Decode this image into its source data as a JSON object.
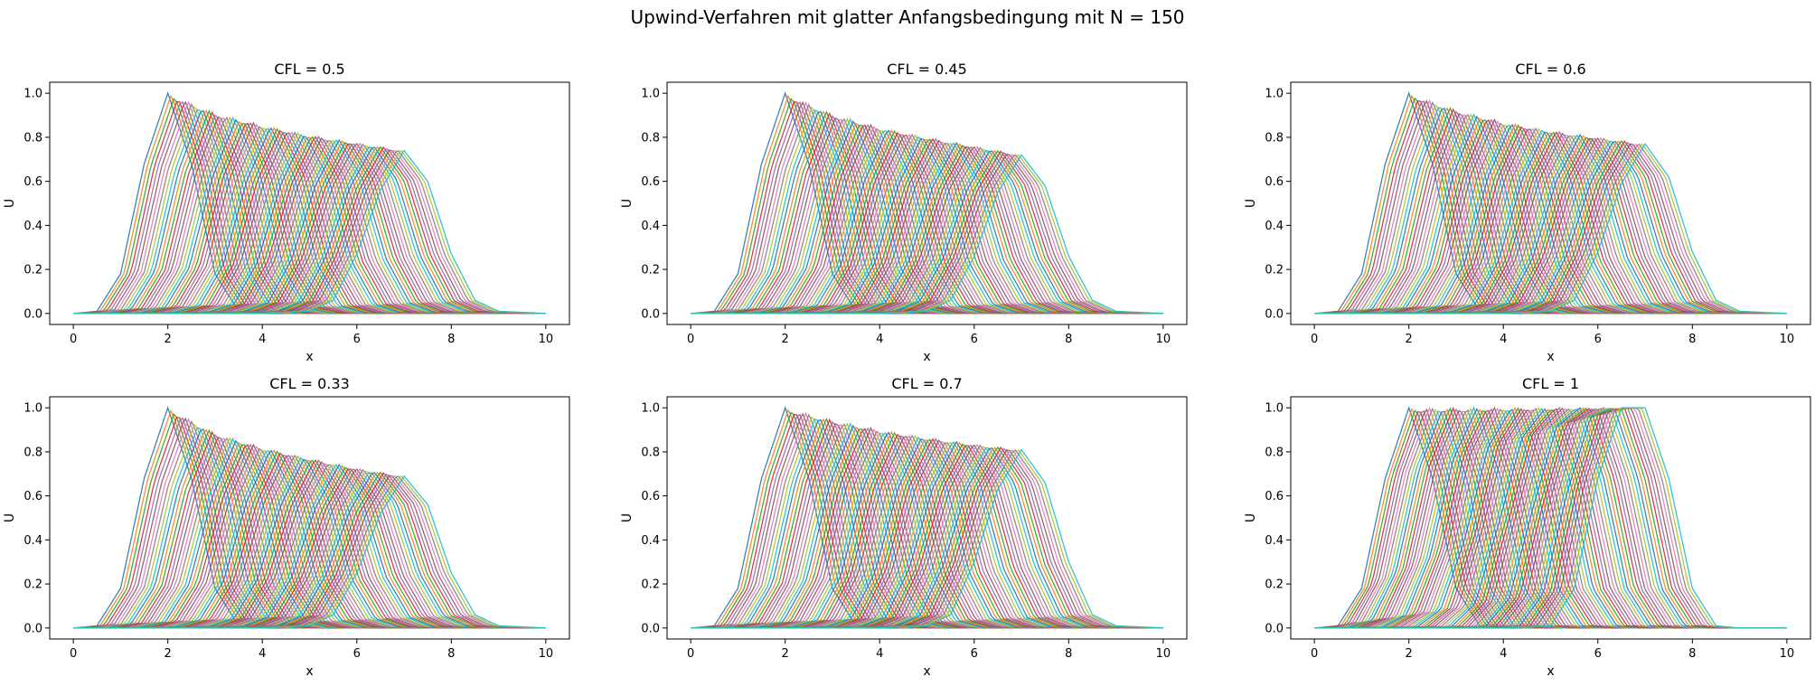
{
  "figure": {
    "suptitle": "Upwind-Verfahren mit glatter Anfangsbedingung mit N = 150"
  },
  "palette": [
    "#1f77b4",
    "#ff7f0e",
    "#2ca02c",
    "#d62728",
    "#9467bd",
    "#8c564b",
    "#e377c2",
    "#7f7f7f",
    "#bcbd22",
    "#17becf"
  ],
  "chart_data": [
    {
      "type": "line",
      "title": "CFL = 0.5",
      "xlabel": "x",
      "ylabel": "U",
      "xlim": [
        -0.5,
        10.5
      ],
      "ylim": [
        -0.05,
        1.05
      ],
      "xticks": [
        0,
        2,
        4,
        6,
        8,
        10
      ],
      "yticks": [
        0.0,
        0.2,
        0.4,
        0.6,
        0.8,
        1.0
      ],
      "yticklabels": [
        "0.0",
        "0.2",
        "0.4",
        "0.6",
        "0.8",
        "1.0"
      ],
      "grid": false,
      "legend": "none",
      "series": [
        {
          "x": [
            0,
            0.5,
            1.0,
            1.5,
            2.0,
            2.5,
            3.0,
            3.5,
            4.0,
            10.0
          ],
          "values": [
            0,
            0.01,
            0.18,
            0.68,
            1.0,
            0.68,
            0.18,
            0.01,
            0,
            0
          ]
        },
        {
          "x": [
            0,
            3.0,
            4.0,
            5.0,
            5.5,
            6.0,
            6.5,
            7.0,
            7.5,
            8.0,
            8.5,
            9.0,
            10.0
          ],
          "values": [
            0,
            0,
            0,
            0.01,
            0.06,
            0.27,
            0.56,
            0.74,
            0.6,
            0.27,
            0.06,
            0.01,
            0
          ]
        }
      ],
      "envelope": {
        "x": [
          2.0,
          3.0,
          4.0,
          5.0,
          6.0,
          7.0
        ],
        "values": [
          1.0,
          0.91,
          0.855,
          0.81,
          0.775,
          0.74
        ]
      }
    },
    {
      "type": "line",
      "title": "CFL = 0.45",
      "xlabel": "x",
      "ylabel": "U",
      "xlim": [
        -0.5,
        10.5
      ],
      "ylim": [
        -0.05,
        1.05
      ],
      "xticks": [
        0,
        2,
        4,
        6,
        8,
        10
      ],
      "yticks": [
        0.0,
        0.2,
        0.4,
        0.6,
        0.8,
        1.0
      ],
      "yticklabels": [
        "0.0",
        "0.2",
        "0.4",
        "0.6",
        "0.8",
        "1.0"
      ],
      "grid": false,
      "legend": "none",
      "series": [
        {
          "x": [
            0,
            0.5,
            1.0,
            1.5,
            2.0,
            2.5,
            3.0,
            3.5,
            4.0,
            10.0
          ],
          "values": [
            0,
            0.01,
            0.18,
            0.68,
            1.0,
            0.68,
            0.18,
            0.01,
            0,
            0
          ]
        },
        {
          "x": [
            0,
            3.0,
            4.0,
            5.0,
            5.5,
            6.0,
            6.5,
            7.0,
            7.5,
            8.0,
            8.5,
            9.0,
            10.0
          ],
          "values": [
            0,
            0,
            0,
            0.01,
            0.06,
            0.26,
            0.55,
            0.72,
            0.58,
            0.26,
            0.06,
            0.01,
            0
          ]
        }
      ],
      "envelope": {
        "x": [
          2.0,
          3.0,
          4.0,
          5.0,
          6.0,
          7.0
        ],
        "values": [
          1.0,
          0.905,
          0.845,
          0.8,
          0.76,
          0.72
        ]
      }
    },
    {
      "type": "line",
      "title": "CFL = 0.6",
      "xlabel": "x",
      "ylabel": "U",
      "xlim": [
        -0.5,
        10.5
      ],
      "ylim": [
        -0.05,
        1.05
      ],
      "xticks": [
        0,
        2,
        4,
        6,
        8,
        10
      ],
      "yticks": [
        0.0,
        0.2,
        0.4,
        0.6,
        0.8,
        1.0
      ],
      "yticklabels": [
        "0.0",
        "0.2",
        "0.4",
        "0.6",
        "0.8",
        "1.0"
      ],
      "grid": false,
      "legend": "none",
      "series": [
        {
          "x": [
            0,
            0.5,
            1.0,
            1.5,
            2.0,
            2.5,
            3.0,
            3.5,
            4.0,
            10.0
          ],
          "values": [
            0,
            0.01,
            0.18,
            0.68,
            1.0,
            0.68,
            0.18,
            0.01,
            0,
            0
          ]
        },
        {
          "x": [
            0,
            3.0,
            4.0,
            5.0,
            5.5,
            6.0,
            6.5,
            7.0,
            7.5,
            8.0,
            8.5,
            9.0,
            10.0
          ],
          "values": [
            0,
            0,
            0,
            0.01,
            0.06,
            0.28,
            0.59,
            0.77,
            0.62,
            0.28,
            0.06,
            0.01,
            0
          ]
        }
      ],
      "envelope": {
        "x": [
          2.0,
          3.0,
          4.0,
          5.0,
          6.0,
          7.0
        ],
        "values": [
          1.0,
          0.925,
          0.87,
          0.83,
          0.8,
          0.77
        ]
      }
    },
    {
      "type": "line",
      "title": "CFL = 0.33",
      "xlabel": "x",
      "ylabel": "U",
      "xlim": [
        -0.5,
        10.5
      ],
      "ylim": [
        -0.05,
        1.05
      ],
      "xticks": [
        0,
        2,
        4,
        6,
        8,
        10
      ],
      "yticks": [
        0.0,
        0.2,
        0.4,
        0.6,
        0.8,
        1.0
      ],
      "yticklabels": [
        "0.0",
        "0.2",
        "0.4",
        "0.6",
        "0.8",
        "1.0"
      ],
      "grid": false,
      "legend": "none",
      "series": [
        {
          "x": [
            0,
            0.5,
            1.0,
            1.5,
            2.0,
            2.5,
            3.0,
            3.5,
            4.0,
            10.0
          ],
          "values": [
            0,
            0.01,
            0.18,
            0.68,
            1.0,
            0.68,
            0.18,
            0.01,
            0,
            0
          ]
        },
        {
          "x": [
            0,
            3.0,
            4.0,
            5.0,
            5.5,
            6.0,
            6.5,
            7.0,
            7.5,
            8.0,
            8.5,
            9.0,
            10.0
          ],
          "values": [
            0,
            0,
            0,
            0.01,
            0.06,
            0.25,
            0.52,
            0.69,
            0.56,
            0.25,
            0.06,
            0.01,
            0
          ]
        }
      ],
      "envelope": {
        "x": [
          2.0,
          3.0,
          4.0,
          5.0,
          6.0,
          7.0
        ],
        "values": [
          1.0,
          0.885,
          0.82,
          0.77,
          0.725,
          0.69
        ]
      }
    },
    {
      "type": "line",
      "title": "CFL = 0.7",
      "xlabel": "x",
      "ylabel": "U",
      "xlim": [
        -0.5,
        10.5
      ],
      "ylim": [
        -0.05,
        1.05
      ],
      "xticks": [
        0,
        2,
        4,
        6,
        8,
        10
      ],
      "yticks": [
        0.0,
        0.2,
        0.4,
        0.6,
        0.8,
        1.0
      ],
      "yticklabels": [
        "0.0",
        "0.2",
        "0.4",
        "0.6",
        "0.8",
        "1.0"
      ],
      "grid": false,
      "legend": "none",
      "series": [
        {
          "x": [
            0,
            0.5,
            1.0,
            1.5,
            2.0,
            2.5,
            3.0,
            3.5,
            4.0,
            10.0
          ],
          "values": [
            0,
            0.01,
            0.18,
            0.68,
            1.0,
            0.68,
            0.18,
            0.01,
            0,
            0
          ]
        },
        {
          "x": [
            0,
            3.0,
            4.0,
            5.0,
            5.5,
            6.0,
            6.5,
            7.0,
            7.5,
            8.0,
            8.5,
            9.0,
            10.0
          ],
          "values": [
            0,
            0,
            0,
            0.01,
            0.06,
            0.3,
            0.63,
            0.81,
            0.66,
            0.3,
            0.06,
            0.01,
            0
          ]
        }
      ],
      "envelope": {
        "x": [
          2.0,
          3.0,
          4.0,
          5.0,
          6.0,
          7.0
        ],
        "values": [
          1.0,
          0.945,
          0.9,
          0.865,
          0.835,
          0.81
        ]
      }
    },
    {
      "type": "line",
      "title": "CFL = 1",
      "xlabel": "x",
      "ylabel": "U",
      "xlim": [
        -0.5,
        10.5
      ],
      "ylim": [
        -0.05,
        1.05
      ],
      "xticks": [
        0,
        2,
        4,
        6,
        8,
        10
      ],
      "yticks": [
        0.0,
        0.2,
        0.4,
        0.6,
        0.8,
        1.0
      ],
      "yticklabels": [
        "0.0",
        "0.2",
        "0.4",
        "0.6",
        "0.8",
        "1.0"
      ],
      "grid": false,
      "legend": "none",
      "series": [
        {
          "x": [
            0,
            0.5,
            1.0,
            1.5,
            2.0,
            2.5,
            3.0,
            3.5,
            4.0,
            10.0
          ],
          "values": [
            0,
            0.01,
            0.18,
            0.68,
            1.0,
            0.68,
            0.18,
            0.01,
            0,
            0
          ]
        },
        {
          "x": [
            0,
            3.0,
            4.0,
            5.0,
            5.5,
            6.0,
            6.5,
            7.0,
            7.5,
            8.0,
            8.5,
            9.0,
            10.0
          ],
          "values": [
            0,
            0,
            0,
            0.01,
            0.18,
            0.68,
            1.0,
            1.0,
            0.68,
            0.18,
            0.01,
            0,
            0
          ]
        }
      ],
      "envelope": {
        "x": [
          2.0,
          3.0,
          4.0,
          5.0,
          6.0,
          7.0
        ],
        "values": [
          1.0,
          1.0,
          1.0,
          1.0,
          1.0,
          1.0
        ]
      }
    }
  ]
}
